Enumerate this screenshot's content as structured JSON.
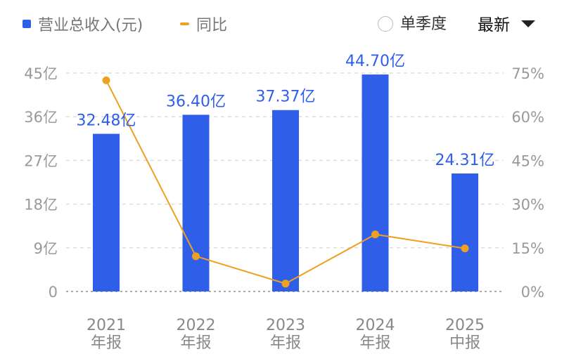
{
  "legend": {
    "revenue_label": "营业总收入(元)",
    "yoy_label": "同比"
  },
  "controls": {
    "single_quarter_label": "单季度",
    "period_label": "最新"
  },
  "colors": {
    "bar": "#2f5fe9",
    "line": "#f0a020",
    "bar_label": "#2f5fe9",
    "axis_text": "#999999",
    "grid": "#dddddd"
  },
  "chart_data": {
    "type": "bar",
    "categories": [
      {
        "year": "2021",
        "period": "年报"
      },
      {
        "year": "2022",
        "period": "年报"
      },
      {
        "year": "2023",
        "period": "年报"
      },
      {
        "year": "2024",
        "period": "年报"
      },
      {
        "year": "2025",
        "period": "中报"
      }
    ],
    "series": [
      {
        "name": "营业总收入(元)",
        "type": "bar",
        "axis": "left",
        "values": [
          32.48,
          36.4,
          37.37,
          44.7,
          24.31
        ],
        "labels": [
          "32.48亿",
          "36.40亿",
          "37.37亿",
          "44.70亿",
          "24.31亿"
        ]
      },
      {
        "name": "同比",
        "type": "line",
        "axis": "right",
        "values": [
          72.5,
          12.1,
          2.7,
          19.6,
          14.8
        ]
      }
    ],
    "y_left": {
      "ticks": [
        0,
        9,
        18,
        27,
        36,
        45
      ],
      "tick_labels": [
        "0",
        "9亿",
        "18亿",
        "27亿",
        "36亿",
        "45亿"
      ],
      "range": [
        0,
        45
      ]
    },
    "y_right": {
      "ticks": [
        0,
        15,
        30,
        45,
        60,
        75
      ],
      "tick_labels": [
        "0%",
        "15%",
        "30%",
        "45%",
        "60%",
        "75%"
      ],
      "range": [
        0,
        75
      ]
    },
    "grid": true,
    "legend_position": "top-left"
  }
}
